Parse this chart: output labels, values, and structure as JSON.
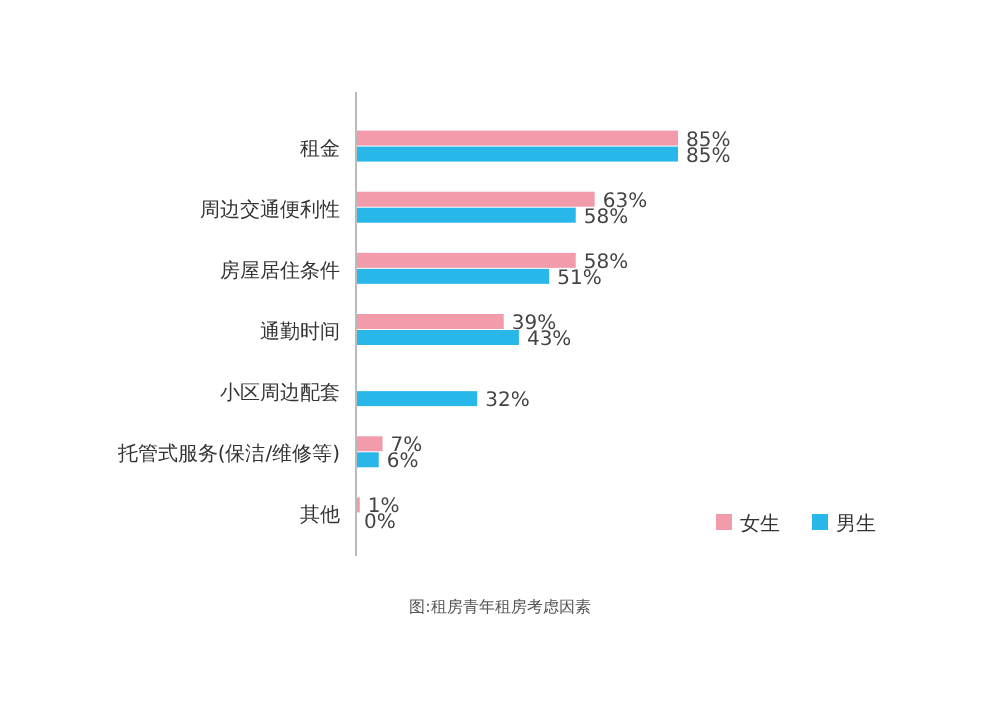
{
  "chart_data": {
    "type": "bar",
    "orientation": "horizontal",
    "categories": [
      "租金",
      "周边交通便利性",
      "房屋居住条件",
      "通勤时间",
      "小区周边配套",
      "托管式服务(保洁/维修等)",
      "其他"
    ],
    "series": [
      {
        "name": "女生",
        "color": "#f19bab",
        "values": [
          85,
          63,
          58,
          39,
          null,
          7,
          1
        ],
        "value_labels": [
          "85%",
          "63%",
          "58%",
          "39%",
          null,
          "7%",
          "1%"
        ]
      },
      {
        "name": "男生",
        "color": "#29b6e8",
        "values": [
          85,
          58,
          51,
          43,
          32,
          6,
          0
        ],
        "value_labels": [
          "85%",
          "58%",
          "51%",
          "43%",
          "32%",
          "6%",
          "0%"
        ]
      }
    ],
    "legend": "bottom right",
    "annotations": [
      "图:租房青年租房考虑因素"
    ]
  }
}
